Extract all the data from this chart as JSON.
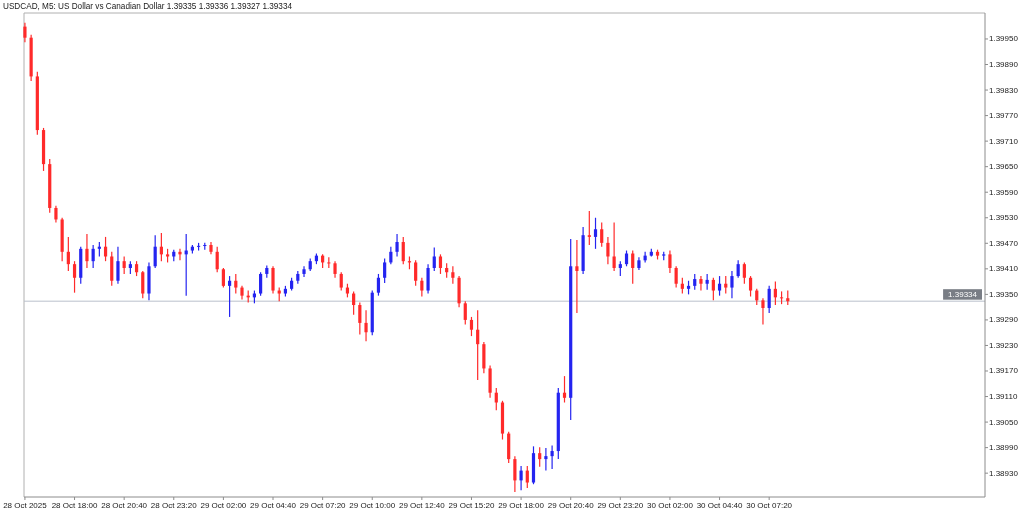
{
  "chart_data": {
    "type": "candlestick",
    "title": "USDCAD, M5: US Dollar vs Canadian Dollar 1.39335 1.39336 1.39327 1.39334",
    "x": [
      "2025-10-28T15:20",
      "2025-10-28T15:40",
      "2025-10-28T16:00",
      "2025-10-28T16:20",
      "2025-10-28T16:40",
      "2025-10-28T17:00",
      "2025-10-28T17:20",
      "2025-10-28T17:40",
      "2025-10-28T18:00",
      "2025-10-28T18:20",
      "2025-10-28T18:40",
      "2025-10-28T19:00",
      "2025-10-28T19:20",
      "2025-10-28T19:40",
      "2025-10-28T20:00",
      "2025-10-28T20:20",
      "2025-10-28T20:40",
      "2025-10-28T21:00",
      "2025-10-28T21:20",
      "2025-10-28T21:40",
      "2025-10-28T22:00",
      "2025-10-28T22:20",
      "2025-10-28T22:40",
      "2025-10-28T23:00",
      "2025-10-28T23:20",
      "2025-10-28T23:40",
      "2025-10-29T00:00",
      "2025-10-29T00:20",
      "2025-10-29T00:40",
      "2025-10-29T01:00",
      "2025-10-29T01:20",
      "2025-10-29T01:40",
      "2025-10-29T02:00",
      "2025-10-29T02:20",
      "2025-10-29T02:40",
      "2025-10-29T03:00",
      "2025-10-29T03:20",
      "2025-10-29T03:40",
      "2025-10-29T04:00",
      "2025-10-29T04:20",
      "2025-10-29T04:40",
      "2025-10-29T05:00",
      "2025-10-29T05:20",
      "2025-10-29T05:40",
      "2025-10-29T06:00",
      "2025-10-29T06:20",
      "2025-10-29T06:40",
      "2025-10-29T07:00",
      "2025-10-29T07:20",
      "2025-10-29T07:40",
      "2025-10-29T08:00",
      "2025-10-29T08:20",
      "2025-10-29T08:40",
      "2025-10-29T09:00",
      "2025-10-29T09:20",
      "2025-10-29T09:40",
      "2025-10-29T10:00",
      "2025-10-29T10:20",
      "2025-10-29T10:40",
      "2025-10-29T11:00",
      "2025-10-29T11:20",
      "2025-10-29T11:40",
      "2025-10-29T12:00",
      "2025-10-29T12:20",
      "2025-10-29T12:40",
      "2025-10-29T13:00",
      "2025-10-29T13:20",
      "2025-10-29T13:40",
      "2025-10-29T14:00",
      "2025-10-29T14:20",
      "2025-10-29T14:40",
      "2025-10-29T15:00",
      "2025-10-29T15:20",
      "2025-10-29T15:40",
      "2025-10-29T16:00",
      "2025-10-29T16:20",
      "2025-10-29T16:40",
      "2025-10-29T17:00",
      "2025-10-29T17:20",
      "2025-10-29T17:40",
      "2025-10-29T18:00",
      "2025-10-29T18:20",
      "2025-10-29T18:40",
      "2025-10-29T19:00",
      "2025-10-29T19:20",
      "2025-10-29T19:40",
      "2025-10-29T20:00",
      "2025-10-29T20:20",
      "2025-10-29T20:40",
      "2025-10-29T21:00",
      "2025-10-29T21:20",
      "2025-10-29T21:40",
      "2025-10-29T22:00",
      "2025-10-29T22:20",
      "2025-10-29T22:40",
      "2025-10-29T23:00",
      "2025-10-29T23:20",
      "2025-10-29T23:40",
      "2025-10-30T00:00",
      "2025-10-30T00:20",
      "2025-10-30T00:40",
      "2025-10-30T01:00",
      "2025-10-30T01:20",
      "2025-10-30T01:40",
      "2025-10-30T02:00",
      "2025-10-30T02:20",
      "2025-10-30T02:40",
      "2025-10-30T03:00",
      "2025-10-30T03:20",
      "2025-10-30T03:40",
      "2025-10-30T04:00",
      "2025-10-30T04:20",
      "2025-10-30T04:40",
      "2025-10-30T05:00",
      "2025-10-30T05:20",
      "2025-10-30T05:40",
      "2025-10-30T06:00",
      "2025-10-30T06:20",
      "2025-10-30T06:40",
      "2025-10-30T07:00",
      "2025-10-30T07:20",
      "2025-10-30T07:40",
      "2025-10-30T08:00",
      "2025-10-30T08:20"
    ],
    "ohlc": [
      [
        1.39979,
        1.39988,
        1.39942,
        1.39953
      ],
      [
        1.39953,
        1.3996,
        1.39851,
        1.39862
      ],
      [
        1.39862,
        1.39873,
        1.39725,
        1.39736
      ],
      [
        1.39736,
        1.39741,
        1.3964,
        1.39656
      ],
      [
        1.39656,
        1.39668,
        1.39542,
        1.39553
      ],
      [
        1.39553,
        1.39558,
        1.39519,
        1.39526
      ],
      [
        1.39526,
        1.3953,
        1.39428,
        1.3945
      ],
      [
        1.3945,
        1.39485,
        1.39405,
        1.39421
      ],
      [
        1.39421,
        1.39428,
        1.39354,
        1.39389
      ],
      [
        1.39389,
        1.39462,
        1.39375,
        1.39457
      ],
      [
        1.39457,
        1.39492,
        1.39412,
        1.39428
      ],
      [
        1.39428,
        1.39466,
        1.39412,
        1.39457
      ],
      [
        1.39457,
        1.39473,
        1.39439,
        1.39462
      ],
      [
        1.39462,
        1.39485,
        1.39428,
        1.39439
      ],
      [
        1.39439,
        1.3945,
        1.3937,
        1.39382
      ],
      [
        1.39382,
        1.39462,
        1.39375,
        1.39428
      ],
      [
        1.39428,
        1.39439,
        1.39398,
        1.39412
      ],
      [
        1.39412,
        1.39428,
        1.39398,
        1.39421
      ],
      [
        1.39421,
        1.39428,
        1.39393,
        1.39402
      ],
      [
        1.39402,
        1.39405,
        1.39341,
        1.39352
      ],
      [
        1.39352,
        1.39425,
        1.39336,
        1.39416
      ],
      [
        1.39416,
        1.39489,
        1.39412,
        1.39462
      ],
      [
        1.39462,
        1.39494,
        1.39428,
        1.39444
      ],
      [
        1.39444,
        1.39457,
        1.39425,
        1.39439
      ],
      [
        1.39439,
        1.39455,
        1.39428,
        1.3945
      ],
      [
        1.3945,
        1.39457,
        1.3943,
        1.39444
      ],
      [
        1.39444,
        1.39492,
        1.39347,
        1.39453
      ],
      [
        1.39453,
        1.39466,
        1.39446,
        1.39462
      ],
      [
        1.39462,
        1.39471,
        1.39453,
        1.39464
      ],
      [
        1.39464,
        1.39471,
        1.39455,
        1.39466
      ],
      [
        1.39466,
        1.39473,
        1.39444,
        1.3945
      ],
      [
        1.3945,
        1.39462,
        1.39402,
        1.39409
      ],
      [
        1.39409,
        1.39412,
        1.39366,
        1.3937
      ],
      [
        1.3937,
        1.39393,
        1.39297,
        1.39382
      ],
      [
        1.39382,
        1.39398,
        1.39352,
        1.39366
      ],
      [
        1.39366,
        1.3937,
        1.39338,
        1.39347
      ],
      [
        1.39347,
        1.39359,
        1.39331,
        1.39343
      ],
      [
        1.39343,
        1.39359,
        1.39329,
        1.39352
      ],
      [
        1.39352,
        1.39402,
        1.39347,
        1.39398
      ],
      [
        1.39398,
        1.39418,
        1.39389,
        1.39412
      ],
      [
        1.39412,
        1.39416,
        1.39352,
        1.39359
      ],
      [
        1.39359,
        1.39366,
        1.39334,
        1.39352
      ],
      [
        1.39352,
        1.3937,
        1.39345,
        1.39363
      ],
      [
        1.39363,
        1.39389,
        1.39359,
        1.39382
      ],
      [
        1.39382,
        1.39405,
        1.39375,
        1.39398
      ],
      [
        1.39398,
        1.39416,
        1.39391,
        1.39409
      ],
      [
        1.39409,
        1.39434,
        1.39405,
        1.39428
      ],
      [
        1.39428,
        1.39446,
        1.39421,
        1.39441
      ],
      [
        1.39441,
        1.39444,
        1.39412,
        1.39425
      ],
      [
        1.39425,
        1.39437,
        1.39412,
        1.39423
      ],
      [
        1.39423,
        1.39428,
        1.39389,
        1.39398
      ],
      [
        1.39398,
        1.39402,
        1.39359,
        1.39366
      ],
      [
        1.39366,
        1.39375,
        1.39343,
        1.39352
      ],
      [
        1.39352,
        1.39357,
        1.39302,
        1.39325
      ],
      [
        1.39325,
        1.39331,
        1.39256,
        1.39283
      ],
      [
        1.39283,
        1.39313,
        1.3924,
        1.39261
      ],
      [
        1.39261,
        1.39359,
        1.39254,
        1.39354
      ],
      [
        1.39354,
        1.39398,
        1.39347,
        1.39389
      ],
      [
        1.39389,
        1.39434,
        1.39377,
        1.39425
      ],
      [
        1.39425,
        1.39462,
        1.39421,
        1.3945
      ],
      [
        1.3945,
        1.39492,
        1.39439,
        1.39473
      ],
      [
        1.39473,
        1.39485,
        1.39421,
        1.39428
      ],
      [
        1.39428,
        1.39439,
        1.39409,
        1.39425
      ],
      [
        1.39425,
        1.3943,
        1.3937,
        1.39382
      ],
      [
        1.39382,
        1.39389,
        1.39345,
        1.39359
      ],
      [
        1.39359,
        1.39421,
        1.39352,
        1.39412
      ],
      [
        1.39412,
        1.3946,
        1.39405,
        1.39439
      ],
      [
        1.39439,
        1.39444,
        1.39398,
        1.39412
      ],
      [
        1.39412,
        1.39423,
        1.39389,
        1.39402
      ],
      [
        1.39402,
        1.39416,
        1.39375,
        1.39389
      ],
      [
        1.39389,
        1.39393,
        1.3932,
        1.39329
      ],
      [
        1.39329,
        1.39334,
        1.39279,
        1.3929
      ],
      [
        1.3929,
        1.39297,
        1.39252,
        1.39267
      ],
      [
        1.39267,
        1.39313,
        1.39149,
        1.39233
      ],
      [
        1.39233,
        1.39238,
        1.39165,
        1.39176
      ],
      [
        1.39176,
        1.39183,
        1.39107,
        1.39119
      ],
      [
        1.39119,
        1.3913,
        1.39078,
        1.39096
      ],
      [
        1.39096,
        1.391,
        1.39009,
        1.39023
      ],
      [
        1.39023,
        1.39027,
        1.38954,
        1.38963
      ],
      [
        1.38963,
        1.3897,
        1.38886,
        1.38913
      ],
      [
        1.38913,
        1.38947,
        1.3889,
        1.38936
      ],
      [
        1.38936,
        1.38947,
        1.38895,
        1.38908
      ],
      [
        1.38908,
        1.38993,
        1.38904,
        1.38977
      ],
      [
        1.38977,
        1.38991,
        1.38945,
        1.38963
      ],
      [
        1.38963,
        1.38989,
        1.38936,
        1.3897
      ],
      [
        1.3897,
        1.38995,
        1.3894,
        1.38982
      ],
      [
        1.38982,
        1.3913,
        1.38963,
        1.39119
      ],
      [
        1.39119,
        1.39158,
        1.39096,
        1.39107
      ],
      [
        1.39107,
        1.3948,
        1.39055,
        1.39416
      ],
      [
        1.39416,
        1.39478,
        1.39306,
        1.39405
      ],
      [
        1.39405,
        1.39508,
        1.39398,
        1.39489
      ],
      [
        1.39489,
        1.39546,
        1.39466,
        1.39485
      ],
      [
        1.39485,
        1.3953,
        1.39457,
        1.39503
      ],
      [
        1.39503,
        1.39519,
        1.39462,
        1.39471
      ],
      [
        1.39471,
        1.39485,
        1.39421,
        1.39439
      ],
      [
        1.39439,
        1.39519,
        1.39405,
        1.39412
      ],
      [
        1.39412,
        1.39428,
        1.39393,
        1.39421
      ],
      [
        1.39421,
        1.39453,
        1.39416,
        1.39446
      ],
      [
        1.39446,
        1.39453,
        1.39375,
        1.39412
      ],
      [
        1.39412,
        1.39437,
        1.39407,
        1.3943
      ],
      [
        1.3943,
        1.3945,
        1.39425,
        1.39441
      ],
      [
        1.39441,
        1.39457,
        1.39439,
        1.3945
      ],
      [
        1.3945,
        1.39455,
        1.39432,
        1.39441
      ],
      [
        1.39441,
        1.3945,
        1.3943,
        1.39444
      ],
      [
        1.39444,
        1.39453,
        1.394,
        1.39412
      ],
      [
        1.39412,
        1.39416,
        1.39366,
        1.39375
      ],
      [
        1.39375,
        1.39389,
        1.39352,
        1.39363
      ],
      [
        1.39363,
        1.39382,
        1.3935,
        1.3937
      ],
      [
        1.3937,
        1.39398,
        1.39361,
        1.39386
      ],
      [
        1.39386,
        1.39393,
        1.39359,
        1.39375
      ],
      [
        1.39375,
        1.39398,
        1.39361,
        1.39384
      ],
      [
        1.39384,
        1.39389,
        1.39336,
        1.39359
      ],
      [
        1.39359,
        1.39393,
        1.39347,
        1.39375
      ],
      [
        1.39375,
        1.39393,
        1.39352,
        1.39366
      ],
      [
        1.39366,
        1.39405,
        1.39341,
        1.39393
      ],
      [
        1.39393,
        1.3943,
        1.39389,
        1.39421
      ],
      [
        1.39421,
        1.39425,
        1.39375,
        1.39389
      ],
      [
        1.39389,
        1.39393,
        1.39345,
        1.39359
      ],
      [
        1.39359,
        1.39363,
        1.39325,
        1.39336
      ],
      [
        1.39336,
        1.39341,
        1.39279,
        1.39318
      ],
      [
        1.39318,
        1.3937,
        1.39306,
        1.39363
      ],
      [
        1.39363,
        1.3938,
        1.39325,
        1.39343
      ],
      [
        1.39343,
        1.39357,
        1.39327,
        1.39341
      ],
      [
        1.39341,
        1.39359,
        1.39325,
        1.39334
      ]
    ],
    "colors": [
      "#ff2a2a",
      "#ff2a2a",
      "#ff2a2a",
      "#ff2a2a",
      "#ff2a2a",
      "#ff2a2a",
      "#ff2a2a",
      "#ff2a2a",
      "#ff2a2a",
      "#2424f0",
      "#ff2a2a",
      "#2424f0",
      "#2424f0",
      "#ff2a2a",
      "#ff2a2a",
      "#2424f0",
      "#ff2a2a",
      "#2424f0",
      "#ff2a2a",
      "#ff2a2a",
      "#2424f0",
      "#2424f0",
      "#ff2a2a",
      "#ff2a2a",
      "#2424f0",
      "#ff2a2a",
      "#2424f0",
      "#2424f0",
      "#2424f0",
      "#2424f0",
      "#ff2a2a",
      "#ff2a2a",
      "#ff2a2a",
      "#2424f0",
      "#ff2a2a",
      "#ff2a2a",
      "#ff2a2a",
      "#2424f0",
      "#2424f0",
      "#2424f0",
      "#ff2a2a",
      "#ff2a2a",
      "#2424f0",
      "#2424f0",
      "#2424f0",
      "#2424f0",
      "#2424f0",
      "#2424f0",
      "#ff2a2a",
      "#ff2a2a",
      "#ff2a2a",
      "#ff2a2a",
      "#ff2a2a",
      "#ff2a2a",
      "#ff2a2a",
      "#ff2a2a",
      "#2424f0",
      "#2424f0",
      "#2424f0",
      "#2424f0",
      "#2424f0",
      "#ff2a2a",
      "#ff2a2a",
      "#ff2a2a",
      "#ff2a2a",
      "#2424f0",
      "#2424f0",
      "#ff2a2a",
      "#ff2a2a",
      "#ff2a2a",
      "#ff2a2a",
      "#ff2a2a",
      "#ff2a2a",
      "#ff2a2a",
      "#ff2a2a",
      "#ff2a2a",
      "#ff2a2a",
      "#ff2a2a",
      "#ff2a2a",
      "#ff2a2a",
      "#2424f0",
      "#ff2a2a",
      "#2424f0",
      "#ff2a2a",
      "#2424f0",
      "#2424f0",
      "#2424f0",
      "#ff2a2a",
      "#2424f0",
      "#ff2a2a",
      "#2424f0",
      "#ff2a2a",
      "#2424f0",
      "#ff2a2a",
      "#ff2a2a",
      "#ff2a2a",
      "#2424f0",
      "#2424f0",
      "#ff2a2a",
      "#2424f0",
      "#2424f0",
      "#2424f0",
      "#ff2a2a",
      "#2424f0",
      "#ff2a2a",
      "#ff2a2a",
      "#ff2a2a",
      "#2424f0",
      "#2424f0",
      "#ff2a2a",
      "#2424f0",
      "#ff2a2a",
      "#2424f0",
      "#ff2a2a",
      "#2424f0",
      "#2424f0",
      "#ff2a2a",
      "#ff2a2a",
      "#ff2a2a",
      "#ff2a2a",
      "#2424f0",
      "#ff2a2a",
      "#ff2a2a",
      "#ff2a2a"
    ],
    "xlim": [
      "2025-10-28T15:17",
      "2025-10-30T18:56"
    ],
    "xticks": [
      {
        "value": "2025-10-28T15:20",
        "label": "28 Oct 2025"
      },
      {
        "value": "2025-10-28T18:00",
        "label": "28 Oct 18:00"
      },
      {
        "value": "2025-10-28T20:40",
        "label": "28 Oct 20:40"
      },
      {
        "value": "2025-10-28T23:20",
        "label": "28 Oct 23:20"
      },
      {
        "value": "2025-10-29T02:00",
        "label": "29 Oct 02:00"
      },
      {
        "value": "2025-10-29T04:40",
        "label": "29 Oct 04:40"
      },
      {
        "value": "2025-10-29T07:20",
        "label": "29 Oct 07:20"
      },
      {
        "value": "2025-10-29T10:00",
        "label": "29 Oct 10:00"
      },
      {
        "value": "2025-10-29T12:40",
        "label": "29 Oct 12:40"
      },
      {
        "value": "2025-10-29T15:20",
        "label": "29 Oct 15:20"
      },
      {
        "value": "2025-10-29T18:00",
        "label": "29 Oct 18:00"
      },
      {
        "value": "2025-10-29T20:40",
        "label": "29 Oct 20:40"
      },
      {
        "value": "2025-10-29T23:20",
        "label": "29 Oct 23:20"
      },
      {
        "value": "2025-10-30T02:00",
        "label": "30 Oct 02:00"
      },
      {
        "value": "2025-10-30T04:40",
        "label": "30 Oct 04:40"
      },
      {
        "value": "2025-10-30T07:20",
        "label": "30 Oct 07:20"
      }
    ],
    "ylim": [
      1.38874,
      1.40011
    ],
    "yticks": [
      {
        "value": 1.3893,
        "label": "1.38930"
      },
      {
        "value": 1.3899,
        "label": "1.38990"
      },
      {
        "value": 1.3905,
        "label": "1.39050"
      },
      {
        "value": 1.3911,
        "label": "1.39110"
      },
      {
        "value": 1.3917,
        "label": "1.39170"
      },
      {
        "value": 1.3923,
        "label": "1.39230"
      },
      {
        "value": 1.3929,
        "label": "1.39290"
      },
      {
        "value": 1.3935,
        "label": "1.39350"
      },
      {
        "value": 1.3941,
        "label": "1.39410"
      },
      {
        "value": 1.3947,
        "label": "1.39470"
      },
      {
        "value": 1.3953,
        "label": "1.39530"
      },
      {
        "value": 1.3959,
        "label": "1.39590"
      },
      {
        "value": 1.3965,
        "label": "1.39650"
      },
      {
        "value": 1.3971,
        "label": "1.39710"
      },
      {
        "value": 1.3977,
        "label": "1.39770"
      },
      {
        "value": 1.3983,
        "label": "1.39830"
      },
      {
        "value": 1.3989,
        "label": "1.39890"
      },
      {
        "value": 1.3995,
        "label": "1.39950"
      }
    ],
    "ref_lines": [
      {
        "axis": "y",
        "value": 1.39334,
        "label": "1.39334",
        "color": "#b9c0cc"
      }
    ]
  }
}
